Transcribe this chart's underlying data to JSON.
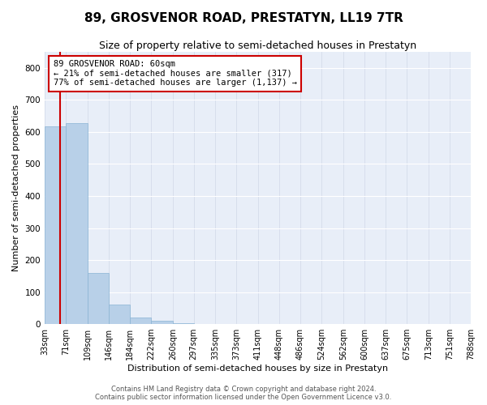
{
  "title": "89, GROSVENOR ROAD, PRESTATYN, LL19 7TR",
  "subtitle": "Size of property relative to semi-detached houses in Prestatyn",
  "xlabel": "Distribution of semi-detached houses by size in Prestatyn",
  "ylabel": "Number of semi-detached properties",
  "footer_line1": "Contains HM Land Registry data © Crown copyright and database right 2024.",
  "footer_line2": "Contains public sector information licensed under the Open Government Licence v3.0.",
  "bar_color": "#b8d0e8",
  "bar_edge_color": "#8ab4d4",
  "background_color": "#e8eef8",
  "annotation_line1": "89 GROSVENOR ROAD: 60sqm",
  "annotation_line2": "← 21% of semi-detached houses are smaller (317)",
  "annotation_line3": "77% of semi-detached houses are larger (1,137) →",
  "annotation_box_color": "#cc0000",
  "property_line_x": 60,
  "property_line_color": "#cc0000",
  "bin_edges": [
    33,
    71,
    109,
    146,
    184,
    222,
    260,
    297,
    335,
    373,
    411,
    448,
    486,
    524,
    562,
    600,
    637,
    675,
    713,
    751,
    788
  ],
  "bar_heights": [
    617,
    627,
    160,
    60,
    20,
    10,
    2,
    0,
    0,
    0,
    0,
    0,
    0,
    0,
    0,
    0,
    0,
    0,
    0,
    0
  ],
  "ylim": [
    0,
    850
  ],
  "yticks": [
    0,
    100,
    200,
    300,
    400,
    500,
    600,
    700,
    800
  ],
  "title_fontsize": 11,
  "subtitle_fontsize": 9,
  "axis_label_fontsize": 8,
  "tick_fontsize": 7,
  "footer_fontsize": 6
}
